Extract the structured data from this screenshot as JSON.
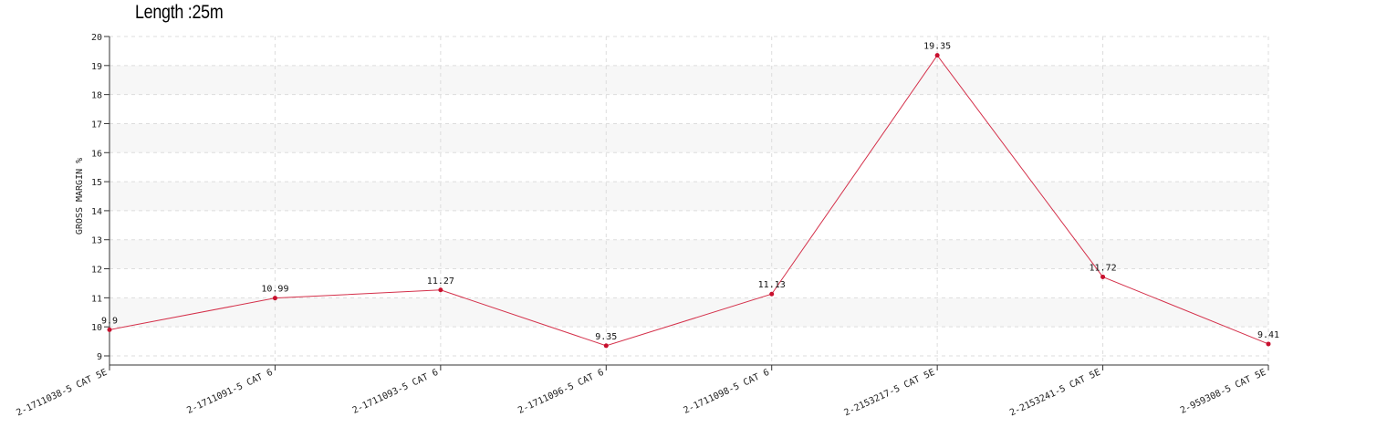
{
  "chart_data": {
    "type": "line",
    "title": "Length :25m",
    "ylabel": "GROSS MARGIN %",
    "xlabel": "",
    "categories": [
      "2-1711038-5 CAT 5E",
      "2-1711091-5 CAT 6",
      "2-1711093-5 CAT 6",
      "2-1711096-5 CAT 6",
      "2-1711098-5 CAT 6",
      "2-2153217-5 CAT 5E",
      "2-2153241-5 CAT 5E",
      "2-959308-5 CAT 5E"
    ],
    "series": [
      {
        "values": [
          9.9,
          10.99,
          11.27,
          9.35,
          11.13,
          19.35,
          11.72,
          9.41
        ],
        "color": "#d4304a",
        "point_color": "#c8102e"
      }
    ],
    "ylim": [
      9,
      20
    ],
    "yticks": [
      9,
      10,
      11,
      12,
      13,
      14,
      15,
      16,
      17,
      18,
      19,
      20
    ],
    "grid": true,
    "band_color": "#f7f7f7",
    "data_labels": true
  }
}
